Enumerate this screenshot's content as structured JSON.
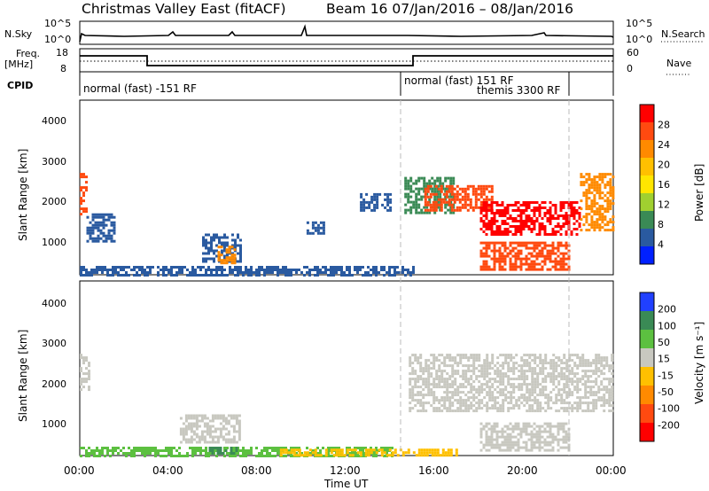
{
  "title": "Christmas Valley East (fitACF)",
  "subtitle": "Beam 16  07/Jan/2016 – 08/Jan/2016",
  "header": {
    "nsky_label": "N.Sky",
    "nsky_ticks": [
      "10^5",
      "10^0"
    ],
    "nsearch_label": "N.Search",
    "nsearch_ticks": [
      "10^5",
      "10^0"
    ],
    "freq_label_1": "Freq.",
    "freq_label_2": "[MHz]",
    "freq_ticks": [
      "18",
      "8"
    ],
    "nave_label": "Nave",
    "nave_ticks": [
      "60",
      "0"
    ],
    "cpid_label": "CPID",
    "cpid_segments": [
      "normal (fast) -151 RF",
      "normal (fast) 151 RF",
      "themis 3300 RF"
    ]
  },
  "chart_data": [
    {
      "type": "heatmap",
      "name": "power",
      "ylabel": "Slant Range [km]",
      "yticks": [
        "4000",
        "3000",
        "2000",
        "1000"
      ],
      "ylim": [
        180,
        4500
      ],
      "xlim": [
        0,
        24
      ],
      "colorbar_label": "Power [dB]",
      "colorbar_ticks": [
        "28",
        "24",
        "20",
        "16",
        "12",
        "8",
        "4"
      ],
      "colorbar_colors": [
        "#ff0000",
        "#ff4a10",
        "#ff8a00",
        "#ffc000",
        "#ffe600",
        "#a0d030",
        "#3a8a55",
        "#2a5aa0",
        "#0020ff"
      ],
      "patches": [
        {
          "t0": 0.0,
          "t1": 0.35,
          "r0": 1700,
          "r1": 2700,
          "c": "#ff4a10"
        },
        {
          "t0": 0.3,
          "t1": 1.6,
          "r0": 1000,
          "r1": 1700,
          "c": "#2a5aa0"
        },
        {
          "t0": 5.5,
          "t1": 7.2,
          "r0": 500,
          "r1": 1200,
          "c": "#2a5aa0"
        },
        {
          "t0": 6.2,
          "t1": 7.0,
          "r0": 500,
          "r1": 900,
          "c": "#ff8a00"
        },
        {
          "t0": 10.2,
          "t1": 11.0,
          "r0": 1200,
          "r1": 1500,
          "c": "#2a5aa0"
        },
        {
          "t0": 12.6,
          "t1": 14.0,
          "r0": 1800,
          "r1": 2200,
          "c": "#2a5aa0"
        },
        {
          "t0": 14.6,
          "t1": 16.8,
          "r0": 1700,
          "r1": 2600,
          "c": "#3a8a55"
        },
        {
          "t0": 15.5,
          "t1": 18.5,
          "r0": 1800,
          "r1": 2400,
          "c": "#ff4a10"
        },
        {
          "t0": 18.0,
          "t1": 22.5,
          "r0": 1200,
          "r1": 2000,
          "c": "#ff0000"
        },
        {
          "t0": 18.0,
          "t1": 22.0,
          "r0": 300,
          "r1": 1000,
          "c": "#ff4a10"
        },
        {
          "t0": 22.5,
          "t1": 24.0,
          "r0": 1300,
          "r1": 2700,
          "c": "#ff8a00"
        },
        {
          "t0": 0.0,
          "t1": 15.0,
          "r0": 200,
          "r1": 400,
          "c": "#2a5aa0"
        }
      ]
    },
    {
      "type": "heatmap",
      "name": "velocity",
      "ylabel": "Slant Range [km]",
      "yticks": [
        "4000",
        "3000",
        "2000",
        "1000"
      ],
      "ylim": [
        180,
        4500
      ],
      "xlim": [
        0,
        24
      ],
      "colorbar_label": "Velocity [m s⁻¹]",
      "colorbar_ticks": [
        "200",
        "100",
        "50",
        "15",
        "-15",
        "-50",
        "-100",
        "-200"
      ],
      "colorbar_colors": [
        "#2040ff",
        "#3a8a55",
        "#5cc040",
        "#c8c8c0",
        "#ffc000",
        "#ff8a00",
        "#ff4a10",
        "#ff0000"
      ],
      "patches": [
        {
          "t0": 0.0,
          "t1": 0.4,
          "r0": 1800,
          "r1": 2700,
          "c": "#c8c8c0"
        },
        {
          "t0": 4.5,
          "t1": 7.2,
          "r0": 500,
          "r1": 1200,
          "c": "#c8c8c0"
        },
        {
          "t0": 14.8,
          "t1": 24.0,
          "r0": 1300,
          "r1": 2700,
          "c": "#c8c8c0"
        },
        {
          "t0": 18.0,
          "t1": 22.0,
          "r0": 300,
          "r1": 1000,
          "c": "#c8c8c0"
        },
        {
          "t0": 0.0,
          "t1": 14.0,
          "r0": 200,
          "r1": 400,
          "c": "#5cc040"
        },
        {
          "t0": 5.8,
          "t1": 7.0,
          "r0": 250,
          "r1": 400,
          "c": "#3a8a55"
        },
        {
          "t0": 9.0,
          "t1": 17.0,
          "r0": 200,
          "r1": 350,
          "c": "#ffc000"
        }
      ]
    }
  ],
  "xaxis": {
    "ticks": [
      "00:00",
      "04:00",
      "08:00",
      "12:00",
      "16:00",
      "20:00",
      "00:00"
    ],
    "label": "Time UT"
  }
}
